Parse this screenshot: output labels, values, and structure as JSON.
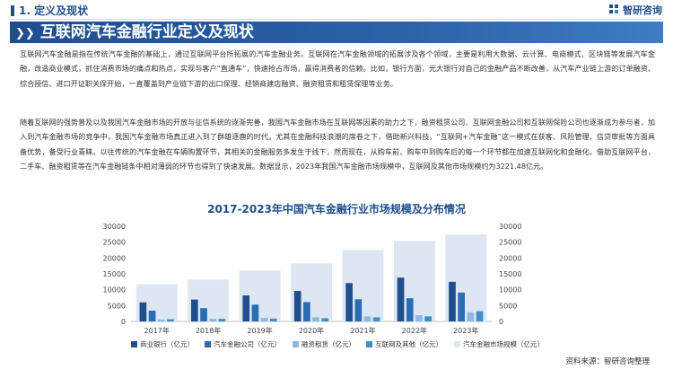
{
  "section": {
    "title": "1. 定义及现状"
  },
  "logo": {
    "name": "智研咨询"
  },
  "banner": {
    "title": "互联网汽车金融行业定义及现状"
  },
  "paragraphs": {
    "p1": "互联网汽车金融是指在传统汽车金融的基础上，通过互联网平台所拓展的汽车金融业务。互联网在汽车金融领域的拓展涉及各个领域，主要是利用大数据、云计算、电商模式、区块链等发展汽车金融，改造商业模式，抓住消费市场的痛点和热点，实现与客户“直通车”，快速抢占市场，赢得消费者的信赖。比如，银行方面，光大银行对自己的金融产品不断改善，从汽车产业链上游的订单融资、综合授信、进口开证职关保开始，一直覆盖到产业链下游的出口保理、经销商建店融资、融资租赁和租赁保理等业务。",
    "p2": "随着互联网的强势普及以及我国汽车金融市场的开放与征信系统的逐渐完善，我国汽车金融市场在互联网等因素的助力之下，融资租赁公司、互联网金融公司和互联网保险公司也逐渐成为参与者，加入到汽车金融市场的竞争中，我国汽车金融市场真正进入到了群雄逐鹿的时代。尤其在金融科技浪潮的席卷之下，借助新兴科技，“互联网+汽车金融”这一模式在获客、风险管理、信贷审批等方面具备优势，备受行业青睐。以往传统的汽车金融在车辆购置环节，其相关的金融服务多发生于线下，然而现在，从购车前、购车中到购车后的每一个环节都在加速互联网化和金融化。借助互联网平台，二手车、融资租赁等在汽车金融链条中相对薄弱的环节也得到了快速发展。数据显示，2023年我国汽车金融市场规模中，互联网及其他市场规模约为3221.48亿元。"
  },
  "chart_data": {
    "type": "bar",
    "title": "2017-2023年中国汽车金融行业市场规模及分布情况",
    "categories": [
      "2017年",
      "2018年",
      "2019年",
      "2020年",
      "2021年",
      "2022年",
      "2023年"
    ],
    "series": [
      {
        "name": "商业银行（亿元）",
        "axis": "left",
        "color": "#1f4e8c",
        "values": [
          6000,
          6900,
          8200,
          9600,
          12100,
          13800,
          12500
        ]
      },
      {
        "name": "汽车金融公司（亿元）",
        "axis": "left",
        "color": "#2a6db5",
        "values": [
          3400,
          4200,
          5300,
          6100,
          7000,
          7300,
          9100
        ]
      },
      {
        "name": "融资租赁（亿元）",
        "axis": "left",
        "color": "#8fb8e0",
        "values": [
          600,
          800,
          1100,
          1300,
          1600,
          2000,
          2900
        ]
      },
      {
        "name": "互联网及其他（亿元）",
        "axis": "left",
        "color": "#3d8fc9",
        "values": [
          700,
          800,
          900,
          1000,
          1300,
          1600,
          3221.48
        ]
      },
      {
        "name": "汽车金融市场规模（亿元）",
        "axis": "right",
        "color": "#dde7f3",
        "values": [
          11700,
          13200,
          16100,
          18300,
          22500,
          25400,
          27400
        ]
      }
    ],
    "yleft_ticks": [
      "0",
      "5000",
      "10000",
      "15000",
      "20000",
      "25000",
      "30000"
    ],
    "yright_ticks": [
      "0",
      "5000",
      "10000",
      "15000",
      "20000",
      "25000",
      "30000"
    ],
    "ylim": [
      0,
      30000
    ],
    "legend_position": "bottom",
    "grid": false
  },
  "source": {
    "text": "资料来源：智研咨询整理"
  },
  "colors": {
    "brand": "#1f4e8c"
  }
}
